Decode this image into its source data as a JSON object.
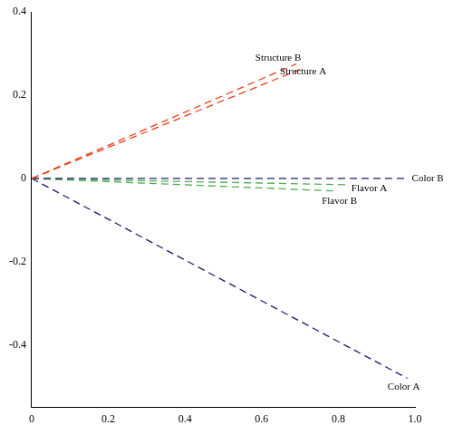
{
  "chart_data": {
    "type": "line",
    "line_style": "dashed",
    "grid": false,
    "xlim": [
      0,
      1.0
    ],
    "xticks": [
      0,
      0.2,
      0.4,
      0.6,
      0.8,
      {
        "value": 1.0,
        "label": "1.0"
      }
    ],
    "ylim": [
      -0.55,
      0.4
    ],
    "yticks": [
      -0.4,
      -0.2,
      0,
      0.2,
      0.4
    ],
    "series": [
      {
        "name": "Structure B",
        "color": "#e8401c",
        "x": [
          0,
          0.69
        ],
        "values": [
          0,
          0.275
        ]
      },
      {
        "name": "Structure A",
        "color": "#e8401c",
        "x": [
          0,
          0.7
        ],
        "values": [
          0,
          0.262
        ]
      },
      {
        "name": "Color B",
        "color": "#1c1c6e",
        "x": [
          0,
          0.98
        ],
        "values": [
          0,
          0.0
        ]
      },
      {
        "name": "Flavor A",
        "color": "#4caf50",
        "x": [
          0,
          0.82
        ],
        "values": [
          0,
          -0.015
        ]
      },
      {
        "name": "Flavor B",
        "color": "#4caf50",
        "x": [
          0,
          0.79
        ],
        "values": [
          0,
          -0.03
        ]
      },
      {
        "name": "Color A",
        "color": "#1c1c6e",
        "x": [
          0,
          0.98
        ],
        "values": [
          0,
          -0.48
        ]
      }
    ]
  }
}
